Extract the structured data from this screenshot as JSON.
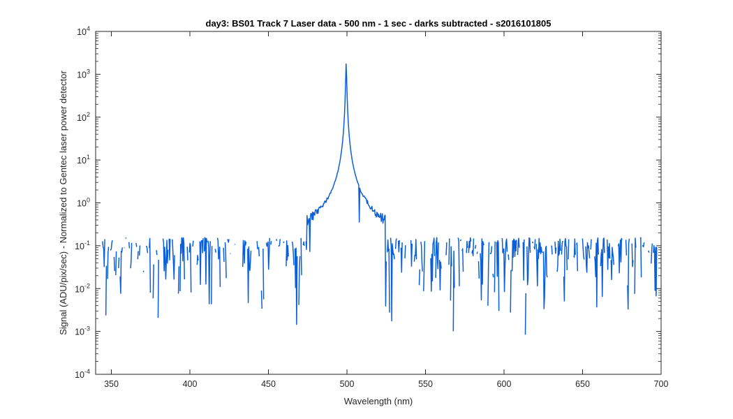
{
  "chart_data": {
    "type": "line",
    "title": "day3: BS01  Track 7 Laser data - 500 nm - 1 sec - darks subtracted - s2016101805",
    "xlabel": "Wavelength (nm)",
    "ylabel": "Signal (ADU/pix/sec) - Normalized to Gentec laser power detector",
    "xlim": [
      340,
      700
    ],
    "ylim": [
      0.0001,
      10000
    ],
    "yscale": "log",
    "grid": false,
    "line_color": "#0b5fd9",
    "x_ticks": [
      "350",
      "400",
      "450",
      "500",
      "550",
      "600",
      "650",
      "700"
    ],
    "y_ticks": [
      {
        "base": "10",
        "exp": "-4"
      },
      {
        "base": "10",
        "exp": "-3"
      },
      {
        "base": "10",
        "exp": "-2"
      },
      {
        "base": "10",
        "exp": "-1"
      },
      {
        "base": "10",
        "exp": "0"
      },
      {
        "base": "10",
        "exp": "1"
      },
      {
        "base": "10",
        "exp": "2"
      },
      {
        "base": "10",
        "exp": "3"
      },
      {
        "base": "10",
        "exp": "4"
      }
    ],
    "series": [
      {
        "peak": {
          "x": 499.5,
          "y": 1800
        },
        "x_range": [
          343,
          700
        ],
        "step_nm": 0.35,
        "noise_floor_y": 0.1,
        "approx_points": [
          [
            343,
            0.12
          ],
          [
            350,
            0.08
          ],
          [
            352,
            0.003
          ],
          [
            360,
            0.05
          ],
          [
            370,
            0.03
          ],
          [
            385,
            0.005
          ],
          [
            400,
            0.05
          ],
          [
            410,
            0.02
          ],
          [
            420,
            0.06
          ],
          [
            439,
            0.004
          ],
          [
            450,
            0.08
          ],
          [
            460,
            0.15
          ],
          [
            470,
            0.2
          ],
          [
            480,
            0.3
          ],
          [
            490,
            0.7
          ],
          [
            495,
            3
          ],
          [
            497,
            20
          ],
          [
            498.5,
            300
          ],
          [
            499.5,
            1800
          ],
          [
            500.5,
            300
          ],
          [
            502,
            15
          ],
          [
            505,
            1.5
          ],
          [
            510,
            0.4
          ],
          [
            520,
            0.2
          ],
          [
            530,
            0.15
          ],
          [
            545,
            0.001
          ],
          [
            560,
            0.08
          ],
          [
            583,
            0.003
          ],
          [
            600,
            0.06
          ],
          [
            626,
            0.0005
          ],
          [
            640,
            0.04
          ],
          [
            660,
            0.05
          ],
          [
            672,
            0.02
          ],
          [
            686,
            0.005
          ],
          [
            700,
            0.1
          ]
        ]
      }
    ]
  }
}
